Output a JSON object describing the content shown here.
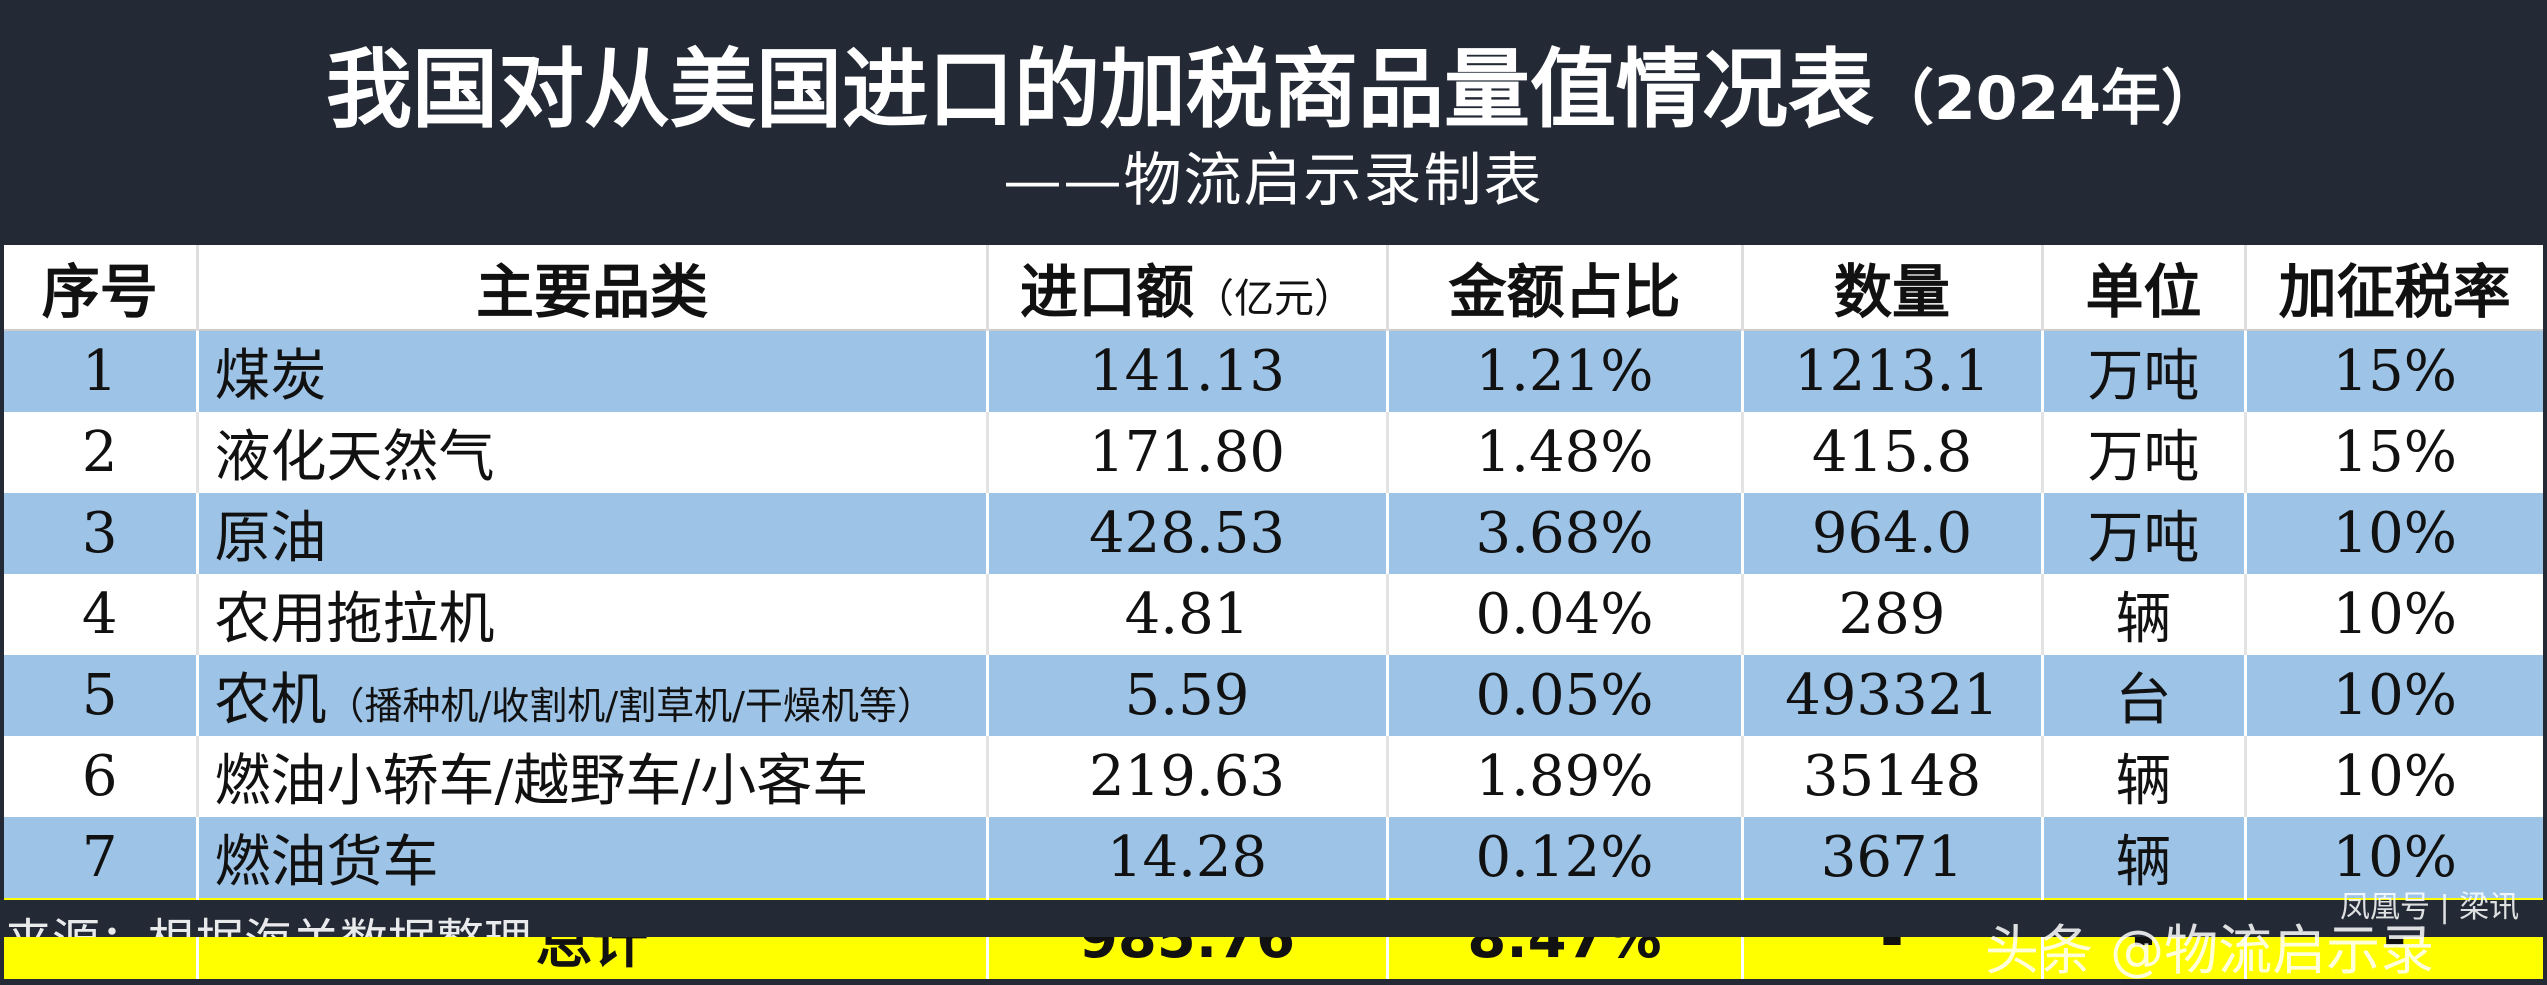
{
  "header": {
    "title": "我国对从美国进口的加税商品量值情况表",
    "title_year": "（2024年）",
    "subtitle": "——物流启示录制表"
  },
  "table": {
    "headers": {
      "index": "序号",
      "category": "主要品类",
      "amount": "进口额",
      "amount_unit": "（亿元）",
      "share": "金额占比",
      "quantity": "数量",
      "unit": "单位",
      "tariff": "加征税率"
    },
    "rows": [
      {
        "index": "1",
        "name": "煤炭",
        "note": "",
        "amount": "141.13",
        "share": "1.21%",
        "quantity": "1213.1",
        "unit": "万吨",
        "tariff": "15%"
      },
      {
        "index": "2",
        "name": "液化天然气",
        "note": "",
        "amount": "171.80",
        "share": "1.48%",
        "quantity": "415.8",
        "unit": "万吨",
        "tariff": "15%"
      },
      {
        "index": "3",
        "name": "原油",
        "note": "",
        "amount": "428.53",
        "share": "3.68%",
        "quantity": "964.0",
        "unit": "万吨",
        "tariff": "10%"
      },
      {
        "index": "4",
        "name": "农用拖拉机",
        "note": "",
        "amount": "4.81",
        "share": "0.04%",
        "quantity": "289",
        "unit": "辆",
        "tariff": "10%"
      },
      {
        "index": "5",
        "name": "农机",
        "note": "（播种机/收割机/割草机/干燥机等）",
        "amount": "5.59",
        "share": "0.05%",
        "quantity": "493321",
        "unit": "台",
        "tariff": "10%"
      },
      {
        "index": "6",
        "name": "燃油小轿车/越野车/小客车",
        "note": "",
        "amount": "219.63",
        "share": "1.89%",
        "quantity": "35148",
        "unit": "辆",
        "tariff": "10%"
      },
      {
        "index": "7",
        "name": "燃油货车",
        "note": "",
        "amount": "14.28",
        "share": "0.12%",
        "quantity": "3671",
        "unit": "辆",
        "tariff": "10%"
      }
    ],
    "total": {
      "label": "总计",
      "amount": "985.76",
      "share": "8.47%",
      "quantity": "-",
      "unit": "-",
      "tariff": "-"
    }
  },
  "footer": {
    "source_note": "来源：根据海关数据整理",
    "platform_watermark": "头条 @物流启示录",
    "corner_mark": "凤凰号 | 梁讯"
  },
  "colors": {
    "header_bg": "#232a36",
    "odd_row": "#9dc3e6",
    "even_row": "#ffffff",
    "total_row": "#ffff00"
  }
}
